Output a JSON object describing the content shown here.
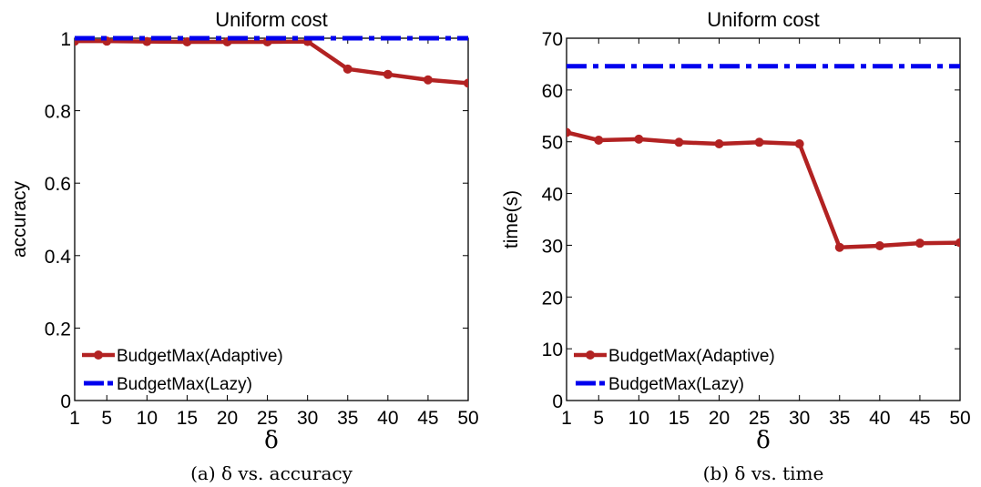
{
  "chart_data": [
    {
      "type": "line",
      "title": "Uniform cost",
      "xlabel": "δ",
      "ylabel": "accuracy",
      "caption": "(a) δ vs. accuracy",
      "categories": [
        "1",
        "5",
        "10",
        "15",
        "20",
        "25",
        "30",
        "35",
        "40",
        "45",
        "50"
      ],
      "ylim": [
        0,
        1
      ],
      "yticks": [
        "0",
        "0.2",
        "0.4",
        "0.6",
        "0.8",
        "1"
      ],
      "ytick_values": [
        0,
        0.2,
        0.4,
        0.6,
        0.8,
        1
      ],
      "grid": false,
      "legend_position": "lower-left",
      "series": [
        {
          "name": "BudgetMax(Adaptive)",
          "color": "#b22222",
          "style": "solid-marker",
          "values": [
            0.992,
            0.992,
            0.991,
            0.99,
            0.99,
            0.99,
            0.991,
            0.915,
            0.9,
            0.885,
            0.876
          ]
        },
        {
          "name": "BudgetMax(Lazy)",
          "color": "#0000ee",
          "style": "dashdot",
          "values": [
            1.0,
            1.0,
            1.0,
            1.0,
            1.0,
            1.0,
            1.0,
            1.0,
            1.0,
            1.0,
            1.0
          ]
        }
      ]
    },
    {
      "type": "line",
      "title": "Uniform cost",
      "xlabel": "δ",
      "ylabel": "time(s)",
      "caption": "(b) δ vs. time",
      "categories": [
        "1",
        "5",
        "10",
        "15",
        "20",
        "25",
        "30",
        "35",
        "40",
        "45",
        "50"
      ],
      "ylim": [
        0,
        70
      ],
      "yticks": [
        "0",
        "10",
        "20",
        "30",
        "40",
        "50",
        "60",
        "70"
      ],
      "ytick_values": [
        0,
        10,
        20,
        30,
        40,
        50,
        60,
        70
      ],
      "grid": false,
      "legend_position": "lower-left",
      "series": [
        {
          "name": "BudgetMax(Adaptive)",
          "color": "#b22222",
          "style": "solid-marker",
          "values": [
            51.8,
            50.3,
            50.5,
            49.9,
            49.6,
            49.9,
            49.6,
            29.6,
            29.9,
            30.4,
            30.5
          ]
        },
        {
          "name": "BudgetMax(Lazy)",
          "color": "#0000ee",
          "style": "dashdot",
          "values": [
            64.6,
            64.6,
            64.6,
            64.6,
            64.6,
            64.6,
            64.6,
            64.6,
            64.6,
            64.6,
            64.6
          ]
        }
      ]
    }
  ]
}
